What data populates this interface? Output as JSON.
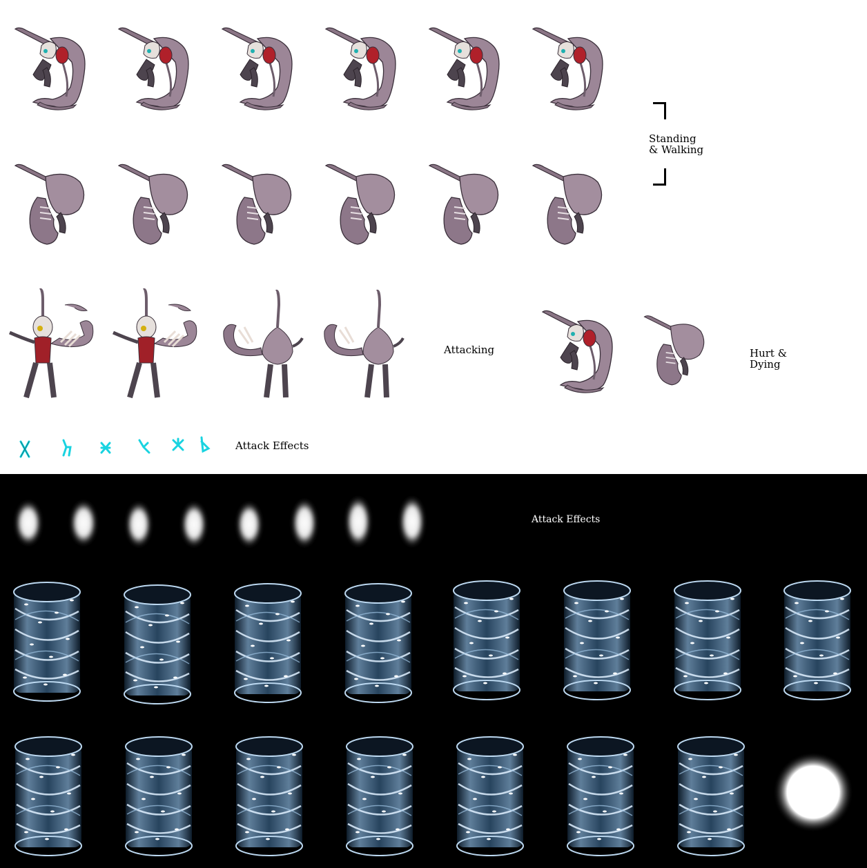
{
  "sheet": {
    "labels": {
      "standing_walking": [
        "Standing",
        "& Walking"
      ],
      "attacking": "Attacking",
      "hurt_dying": [
        "Hurt &",
        "Dying"
      ],
      "attack_effects_top": "Attack Effects",
      "attack_effects_bottom": "Attack Effects"
    },
    "colors": {
      "top_background": "#ffffff",
      "bottom_background": "#000000",
      "creature_body": "#9a8594",
      "creature_dark": "#4a3f4a",
      "creature_red": "#c0202a",
      "rune_effect": "#19d3e0",
      "smoke_effect": "#f2f2f2",
      "vortex_effect": "#cde6ff",
      "glow_orb": "#ffffff"
    },
    "rows": {
      "standing_front": {
        "frames": 6,
        "icon": "front-facing-creature-sprite"
      },
      "standing_back": {
        "frames": 6,
        "icon": "back-facing-creature-sprite"
      },
      "attacking": {
        "frames": 4,
        "icon": "attacking-creature-sprite"
      },
      "hurt_dying": {
        "frames": 2,
        "icon": "hurt-creature-sprite"
      },
      "rune_effects": {
        "frames": 6,
        "icon": "cyan-rune-icon"
      },
      "smoke_effects": {
        "frames": 8,
        "icon": "smoke-puff-icon"
      },
      "vortex_row_1": {
        "frames": 8,
        "icon": "energy-vortex-icon"
      },
      "vortex_row_2": {
        "frames": 7,
        "icon": "energy-vortex-icon"
      },
      "glow_orb": {
        "frames": 1,
        "icon": "glow-orb-icon"
      }
    }
  }
}
